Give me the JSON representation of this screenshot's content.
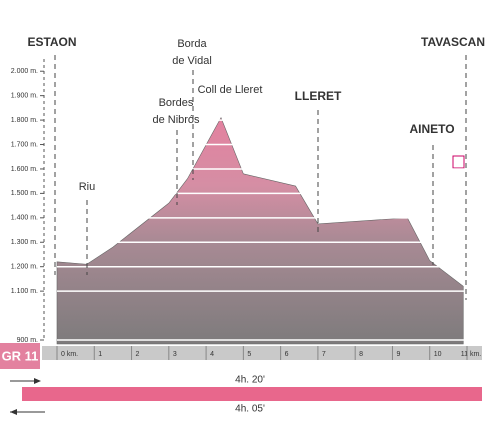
{
  "chart_data": {
    "type": "area",
    "x": [
      0,
      0.8,
      1.5,
      3.0,
      3.5,
      4.4,
      5.0,
      6.4,
      7.0,
      9.4,
      10.0,
      10.9
    ],
    "values": [
      1220,
      1210,
      1280,
      1460,
      1560,
      1810,
      1580,
      1530,
      1375,
      1400,
      1225,
      1120
    ],
    "xlim": [
      0,
      11
    ],
    "xticks": [
      {
        "value": 0,
        "label": "0 km."
      },
      1,
      2,
      3,
      4,
      5,
      6,
      7,
      8,
      9,
      10,
      {
        "value": 11,
        "label": "11 km."
      }
    ],
    "ylim": [
      900,
      2050
    ],
    "yticks": [
      {
        "value": 900,
        "label": "900 m."
      },
      {
        "value": 1100,
        "label": "1.100 m."
      },
      {
        "value": 1200,
        "label": "1.200 m."
      },
      {
        "value": 1300,
        "label": "1.300 m."
      },
      {
        "value": 1400,
        "label": "1.400 m."
      },
      {
        "value": 1500,
        "label": "1.500 m."
      },
      {
        "value": 1600,
        "label": "1.600 m."
      },
      {
        "value": 1700,
        "label": "1.700 m."
      },
      {
        "value": 1800,
        "label": "1.800 m."
      },
      {
        "value": 1900,
        "label": "1.900 m."
      },
      {
        "value": 2000,
        "label": "2.000 m."
      }
    ],
    "grid": true,
    "color": "#e3819f",
    "places": [
      {
        "lines": [
          "ESTAON"
        ]
      },
      {
        "lines": [
          "Riu"
        ]
      },
      {
        "lines": [
          "Bordes",
          "de Nibrós"
        ]
      },
      {
        "lines": [
          "Borda",
          "de Vidal"
        ]
      },
      {
        "lines": [
          "Coll de Lleret"
        ]
      },
      {
        "lines": [
          "LLERET"
        ]
      },
      {
        "lines": [
          "AINETO"
        ]
      },
      {
        "lines": [
          "TAVASCAN"
        ]
      }
    ],
    "route": "GR 11",
    "times": [
      "4h. 20'",
      "4h. 05'"
    ]
  }
}
